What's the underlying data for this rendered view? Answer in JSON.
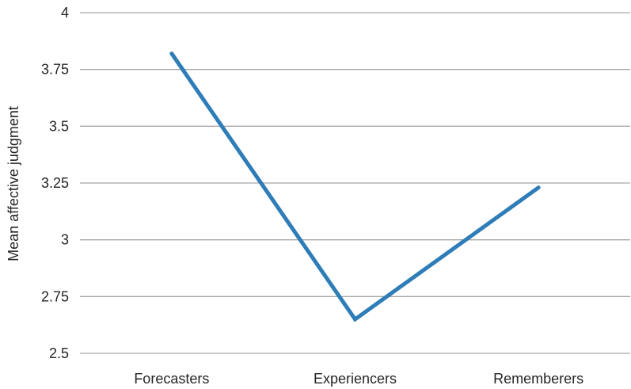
{
  "chart_data": {
    "type": "line",
    "categories": [
      "Forecasters",
      "Experiencers",
      "Rememberers"
    ],
    "series": [
      {
        "values": [
          3.82,
          2.65,
          3.23
        ]
      }
    ],
    "title": "",
    "xlabel": "",
    "ylabel": "Mean affective judgment",
    "ylim": [
      2.5,
      4
    ],
    "yticks": [
      "2.5",
      "2.75",
      "3",
      "3.25",
      "3.5",
      "3.75",
      "4"
    ],
    "grid": true,
    "legend": "none",
    "series_color": "#2e7db8",
    "grid_color": "#a6a6a6"
  }
}
